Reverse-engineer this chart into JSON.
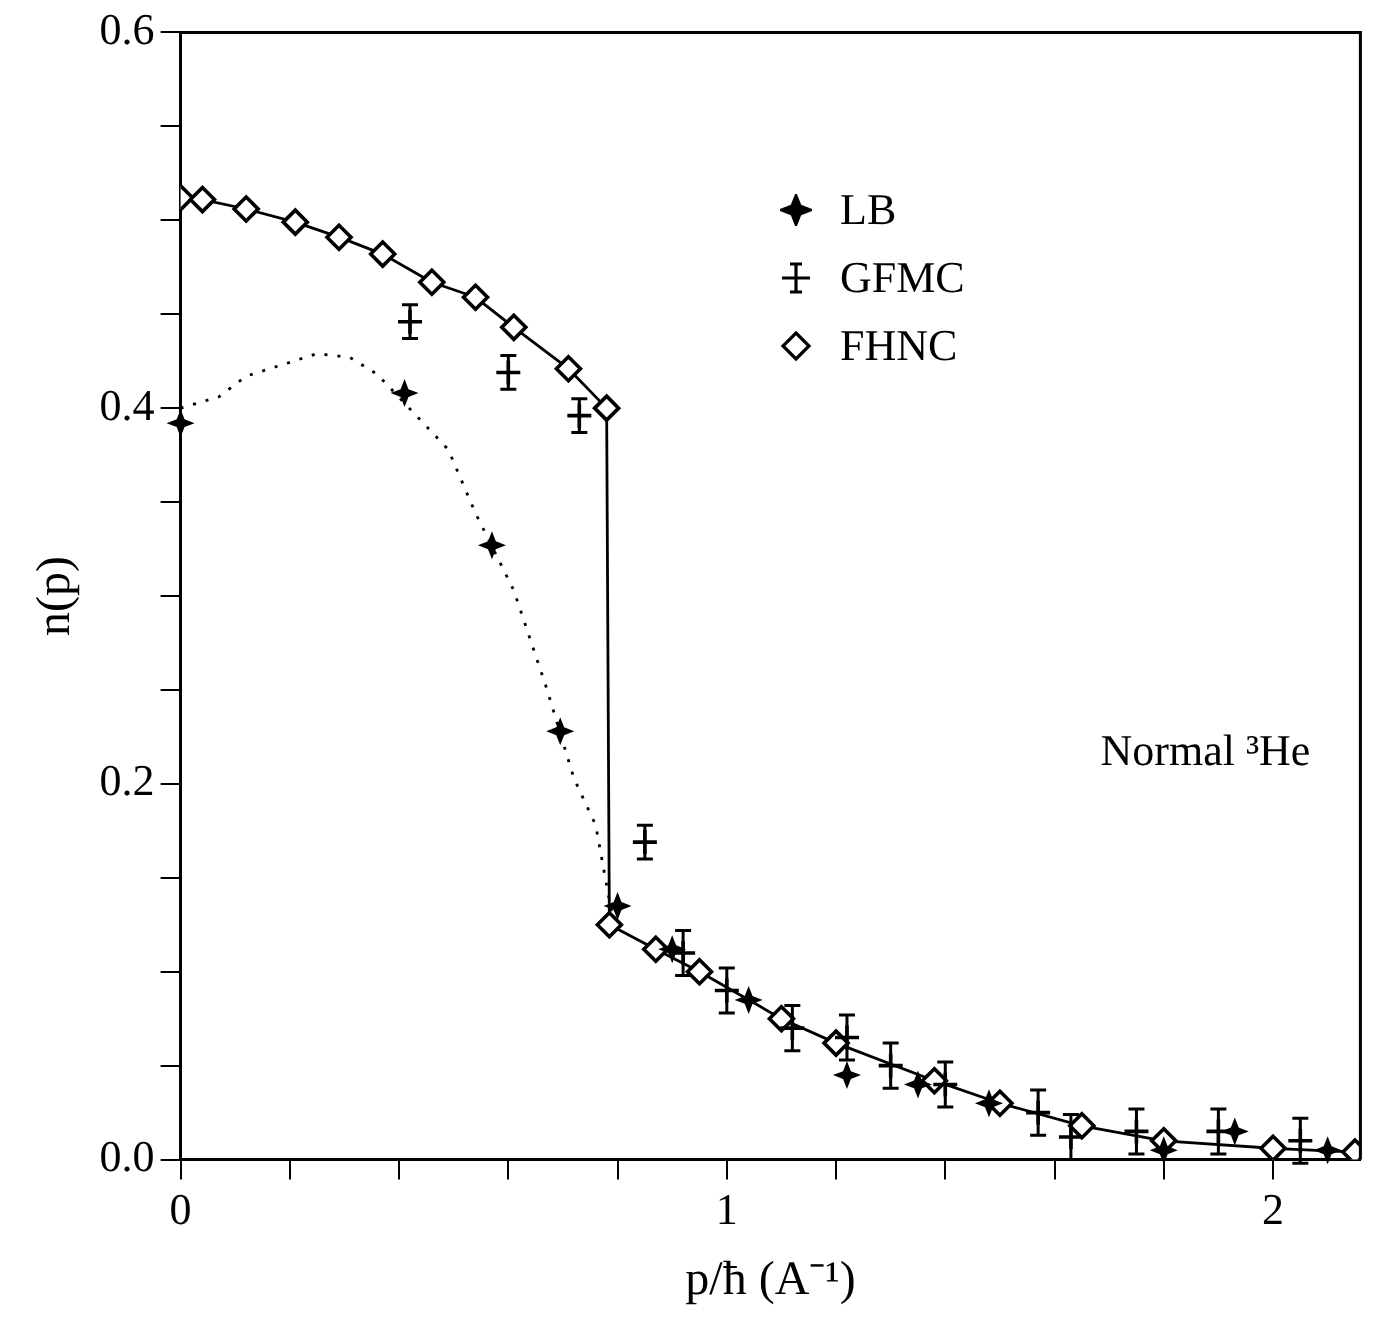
{
  "chart_data": {
    "type": "scatter",
    "xlabel": "p/ħ (A⁻¹)",
    "ylabel": "n(p)",
    "xlim": [
      0,
      2.16
    ],
    "ylim": [
      0,
      0.6
    ],
    "xticks": [
      0,
      {
        "value": 0.2,
        "label": null
      },
      {
        "value": 0.4,
        "label": null
      },
      {
        "value": 0.6,
        "label": null
      },
      {
        "value": 0.8,
        "label": null
      },
      1,
      {
        "value": 1.2,
        "label": null
      },
      {
        "value": 1.4,
        "label": null
      },
      {
        "value": 1.6,
        "label": null
      },
      {
        "value": 1.8,
        "label": null
      },
      2
    ],
    "yticks": [
      {
        "value": 0,
        "label": "0.0"
      },
      {
        "value": 0.05,
        "label": null
      },
      {
        "value": 0.1,
        "label": null
      },
      {
        "value": 0.15,
        "label": null
      },
      {
        "value": 0.2,
        "label": "0.2"
      },
      {
        "value": 0.25,
        "label": null
      },
      {
        "value": 0.3,
        "label": null
      },
      {
        "value": 0.35,
        "label": null
      },
      {
        "value": 0.4,
        "label": "0.4"
      },
      {
        "value": 0.45,
        "label": null
      },
      {
        "value": 0.5,
        "label": null
      },
      {
        "value": 0.55,
        "label": null
      },
      {
        "value": 0.6,
        "label": "0.6"
      }
    ],
    "legend": "top right",
    "annotations": [
      "Normal ³He"
    ],
    "series": [
      {
        "name": "LB",
        "type": "scatter",
        "color": "#000000",
        "marker": "star",
        "x": [
          0,
          0.41,
          0.57,
          0.695,
          0.8,
          0.9,
          1.04,
          1.22,
          1.35,
          1.48,
          1.8,
          1.93,
          2.1
        ],
        "values": [
          0.392,
          0.408,
          0.327,
          0.228,
          0.135,
          0.112,
          0.085,
          0.045,
          0.04,
          0.03,
          0.005,
          0.015,
          0.005
        ]
      },
      {
        "name": "GFMC",
        "type": "scatter",
        "color": "#000000",
        "marker": "cross",
        "x": [
          0.42,
          0.6,
          0.73,
          0.85,
          0.92,
          1.0,
          1.12,
          1.22,
          1.3,
          1.4,
          1.57,
          1.63,
          1.75,
          1.9,
          2.05
        ],
        "values": [
          0.446,
          0.419,
          0.396,
          0.169,
          0.11,
          0.09,
          0.07,
          0.065,
          0.05,
          0.04,
          0.025,
          0.012,
          0.015,
          0.015,
          0.01
        ],
        "errors": [
          0.009,
          0.009,
          0.009,
          0.009,
          0.012,
          0.012,
          0.012,
          0.012,
          0.012,
          0.012,
          0.012,
          0.012,
          0.012,
          0.012,
          0.012
        ]
      },
      {
        "name": "FHNC",
        "type": "line",
        "color": "#000000",
        "marker": "diamond",
        "line_style": "solid",
        "x": [
          0,
          0.04,
          0.12,
          0.21,
          0.29,
          0.37,
          0.46,
          0.54,
          0.61,
          0.71,
          0.78,
          0.785,
          0.87,
          0.95,
          1.1,
          1.2,
          1.38,
          1.5,
          1.65,
          1.8,
          2.0,
          2.15
        ],
        "values": [
          0.512,
          0.511,
          0.506,
          0.499,
          0.491,
          0.482,
          0.467,
          0.459,
          0.443,
          0.421,
          0.4,
          0.125,
          0.112,
          0.1,
          0.075,
          0.062,
          0.042,
          0.03,
          0.018,
          0.01,
          0.006,
          0.004
        ]
      },
      {
        "type": "line",
        "color": "#000000",
        "marker": "none",
        "line_style": "dotted",
        "x": [
          0,
          0.07,
          0.12,
          0.25,
          0.31,
          0.36,
          0.49,
          0.54,
          0.61,
          0.67,
          0.72,
          0.76,
          0.79
        ],
        "values": [
          0.4,
          0.406,
          0.417,
          0.429,
          0.427,
          0.418,
          0.378,
          0.344,
          0.303,
          0.251,
          0.203,
          0.178,
          0.13
        ]
      }
    ]
  }
}
